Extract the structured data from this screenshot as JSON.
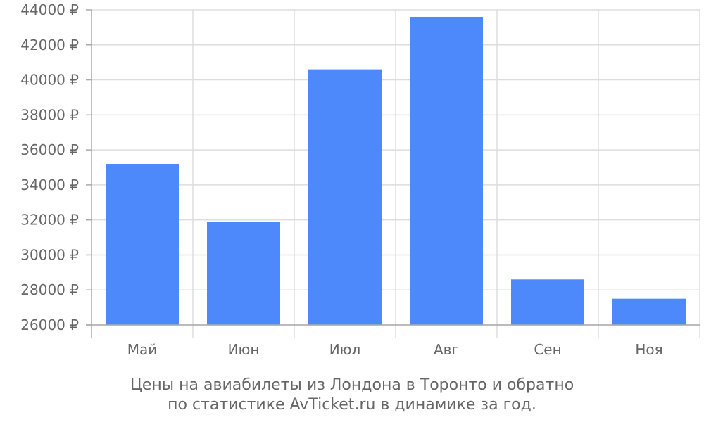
{
  "chart_data": {
    "type": "bar",
    "categories": [
      "Май",
      "Июн",
      "Июл",
      "Авг",
      "Сен",
      "Ноя"
    ],
    "values": [
      35200,
      31900,
      40600,
      43600,
      28600,
      27500
    ],
    "ylim": [
      26000,
      44000
    ],
    "yticks": [
      26000,
      28000,
      30000,
      32000,
      34000,
      36000,
      38000,
      40000,
      42000,
      44000
    ],
    "ytick_suffix": " ₽",
    "grid": true,
    "bar_color": "#4e89fb",
    "grid_color": "#dddddd",
    "axis_color": "#aaaaaa",
    "caption": [
      "Цены на авиабилеты из Лондона в Торонто и обратно",
      "по статистике AvTicket.ru в динамике за год."
    ]
  }
}
